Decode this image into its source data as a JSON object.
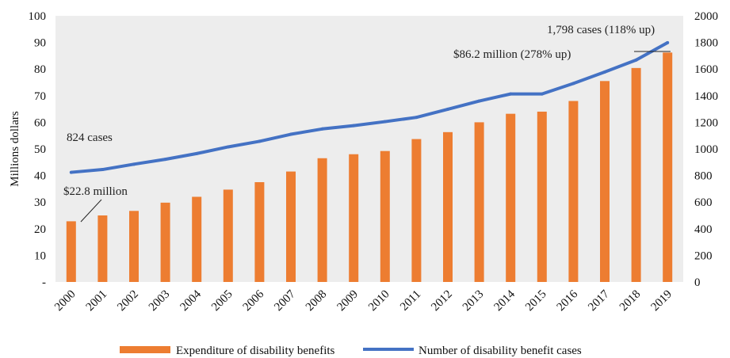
{
  "chart_data": {
    "type": "bar",
    "categories": [
      "2000",
      "2001",
      "2002",
      "2003",
      "2004",
      "2005",
      "2006",
      "2007",
      "2008",
      "2009",
      "2010",
      "2011",
      "2012",
      "2013",
      "2014",
      "2015",
      "2016",
      "2017",
      "2018",
      "2019"
    ],
    "series": [
      {
        "name": "Expenditure of disability benefits",
        "type": "bar",
        "axis": "left",
        "color": "#ED7D31",
        "values": [
          22.8,
          25.0,
          26.7,
          29.8,
          32.0,
          34.7,
          37.5,
          41.5,
          46.5,
          48.0,
          49.2,
          53.7,
          56.3,
          60.0,
          63.2,
          64.0,
          68.0,
          75.5,
          80.4,
          86.2
        ]
      },
      {
        "name": "Number of disability benefit cases",
        "type": "line",
        "axis": "right",
        "color": "#4472C4",
        "values": [
          824,
          845,
          885,
          922,
          965,
          1015,
          1057,
          1110,
          1150,
          1175,
          1205,
          1237,
          1298,
          1360,
          1413,
          1413,
          1492,
          1578,
          1668,
          1798
        ]
      }
    ],
    "ylabel": "Millions  dollars",
    "ylim": [
      0,
      100
    ],
    "y2lim": [
      0,
      2000
    ],
    "left_tick_labels": [
      "-",
      "10",
      "20",
      "30",
      "40",
      "50",
      "60",
      "70",
      "80",
      "90",
      "100"
    ],
    "right_tick_labels": [
      "0",
      "200",
      "400",
      "600",
      "800",
      "1000",
      "1200",
      "1400",
      "1600",
      "1800",
      "2000"
    ],
    "annotations": {
      "start_cases": "824 cases",
      "start_expenditure": "$22.8 million",
      "end_cases": "1,798 cases (118% up)",
      "end_expenditure": "$86.2 million  (278% up)"
    },
    "legend": {
      "position": "bottom",
      "items": [
        "Expenditure of disability benefits",
        "Number of disability benefit cases"
      ]
    },
    "grid": false,
    "background": "#EDEDED"
  }
}
